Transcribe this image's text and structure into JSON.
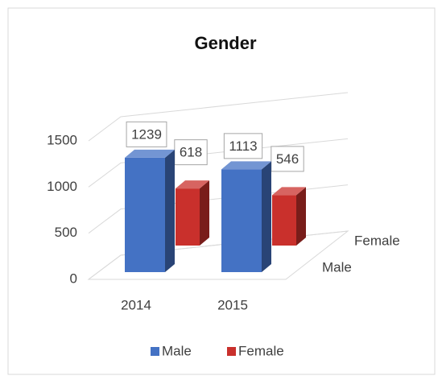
{
  "chart_data": {
    "type": "bar3d",
    "title": "Gender",
    "categories": [
      "2014",
      "2015"
    ],
    "series": [
      {
        "name": "Male",
        "color": "#4472c4",
        "values": [
          1239,
          1113
        ]
      },
      {
        "name": "Female",
        "color": "#c9302c",
        "values": [
          618,
          546
        ]
      }
    ],
    "ylim": [
      0,
      1500
    ],
    "yticks": [
      0,
      500,
      1000,
      1500
    ],
    "grid": true,
    "legend": "bottom"
  }
}
